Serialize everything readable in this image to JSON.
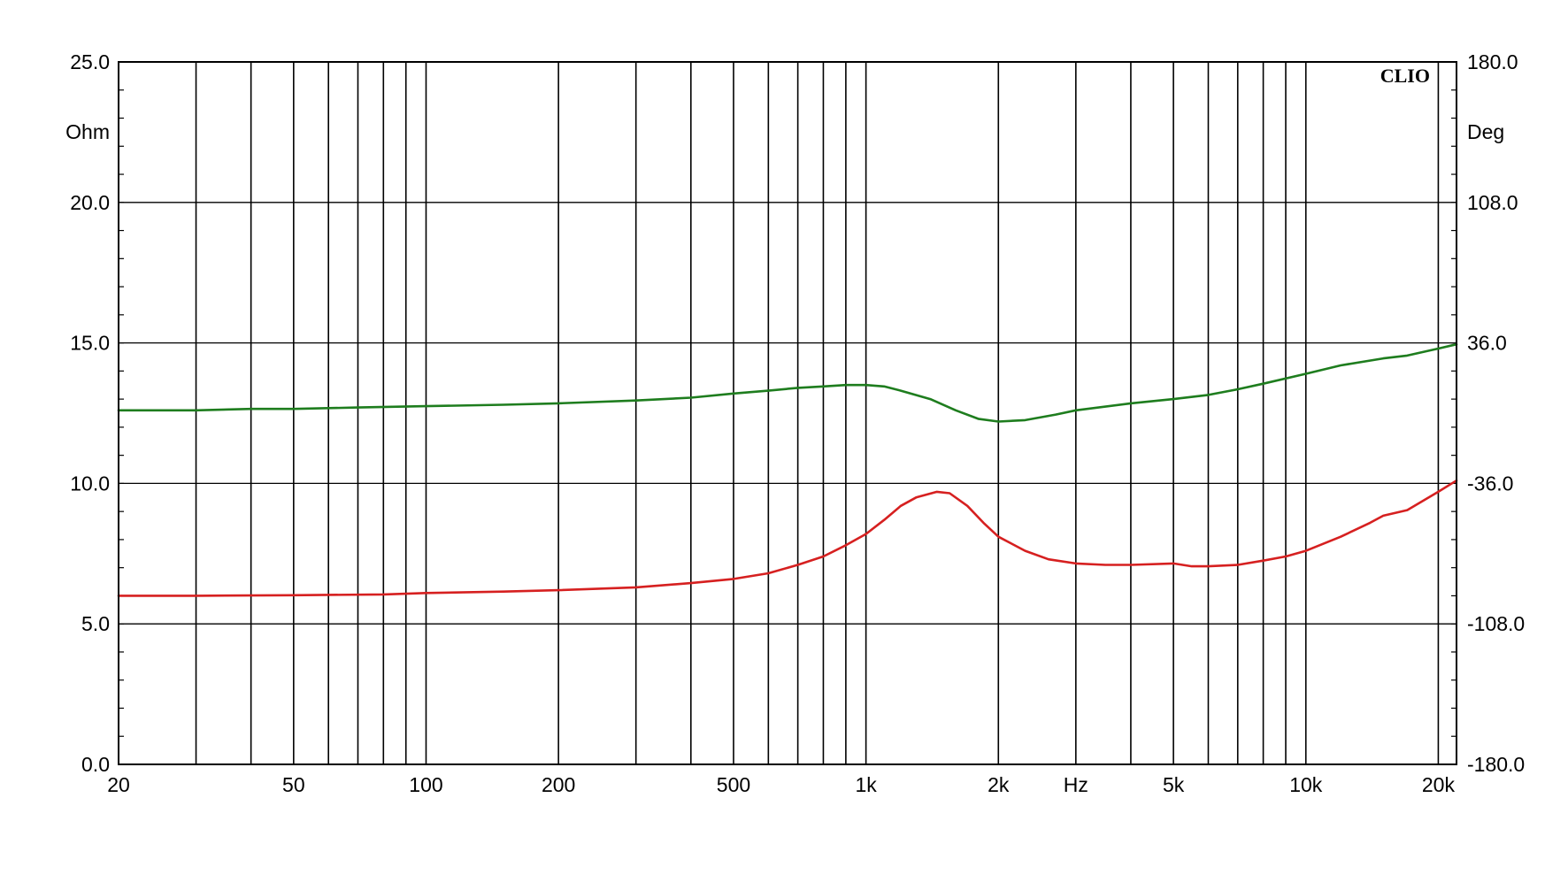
{
  "chart_data": {
    "type": "line",
    "brand": "CLIO",
    "x_scale": "log",
    "xlim": [
      20,
      22000
    ],
    "x_unit": "Hz",
    "x_ticks": [
      {
        "value": 20,
        "label": "20"
      },
      {
        "value": 50,
        "label": "50"
      },
      {
        "value": 100,
        "label": "100"
      },
      {
        "value": 200,
        "label": "200"
      },
      {
        "value": 500,
        "label": "500"
      },
      {
        "value": 1000,
        "label": "1k"
      },
      {
        "value": 2000,
        "label": "2k"
      },
      {
        "value": 5000,
        "label": "5k"
      },
      {
        "value": 10000,
        "label": "10k"
      },
      {
        "value": 20000,
        "label": "20k"
      }
    ],
    "y_left": {
      "unit": "Ohm",
      "ylim": [
        0,
        25
      ],
      "ticks": [
        "0.0",
        "5.0",
        "10.0",
        "15.0",
        "20.0",
        "25.0"
      ]
    },
    "y_right": {
      "unit": "Deg",
      "ylim": [
        -180,
        180
      ],
      "ticks": [
        "-180.0",
        "-108.0",
        "-36.0",
        "36.0",
        "108.0",
        "180.0"
      ]
    },
    "grid": true,
    "series": [
      {
        "axis": "left",
        "color": "#1e7d1e",
        "points": [
          [
            20,
            12.6
          ],
          [
            30,
            12.6
          ],
          [
            40,
            12.65
          ],
          [
            50,
            12.65
          ],
          [
            70,
            12.7
          ],
          [
            100,
            12.75
          ],
          [
            150,
            12.8
          ],
          [
            200,
            12.85
          ],
          [
            300,
            12.95
          ],
          [
            400,
            13.05
          ],
          [
            500,
            13.2
          ],
          [
            600,
            13.3
          ],
          [
            700,
            13.4
          ],
          [
            800,
            13.45
          ],
          [
            900,
            13.5
          ],
          [
            1000,
            13.5
          ],
          [
            1100,
            13.45
          ],
          [
            1200,
            13.3
          ],
          [
            1400,
            13.0
          ],
          [
            1600,
            12.6
          ],
          [
            1800,
            12.3
          ],
          [
            2000,
            12.2
          ],
          [
            2300,
            12.25
          ],
          [
            2700,
            12.45
          ],
          [
            3000,
            12.6
          ],
          [
            4000,
            12.85
          ],
          [
            5000,
            13.0
          ],
          [
            6000,
            13.15
          ],
          [
            7000,
            13.35
          ],
          [
            8000,
            13.55
          ],
          [
            10000,
            13.9
          ],
          [
            12000,
            14.2
          ],
          [
            15000,
            14.45
          ],
          [
            17000,
            14.55
          ],
          [
            20000,
            14.8
          ],
          [
            22000,
            14.95
          ]
        ]
      },
      {
        "axis": "left",
        "color": "#d62020",
        "points": [
          [
            20,
            6.0
          ],
          [
            30,
            6.0
          ],
          [
            50,
            6.02
          ],
          [
            80,
            6.05
          ],
          [
            100,
            6.1
          ],
          [
            150,
            6.15
          ],
          [
            200,
            6.2
          ],
          [
            300,
            6.3
          ],
          [
            400,
            6.45
          ],
          [
            500,
            6.6
          ],
          [
            600,
            6.8
          ],
          [
            700,
            7.1
          ],
          [
            800,
            7.4
          ],
          [
            900,
            7.8
          ],
          [
            1000,
            8.2
          ],
          [
            1100,
            8.7
          ],
          [
            1200,
            9.2
          ],
          [
            1300,
            9.5
          ],
          [
            1450,
            9.7
          ],
          [
            1550,
            9.65
          ],
          [
            1700,
            9.2
          ],
          [
            1850,
            8.6
          ],
          [
            2000,
            8.1
          ],
          [
            2300,
            7.6
          ],
          [
            2600,
            7.3
          ],
          [
            3000,
            7.15
          ],
          [
            3500,
            7.1
          ],
          [
            4000,
            7.1
          ],
          [
            5000,
            7.15
          ],
          [
            5500,
            7.05
          ],
          [
            6000,
            7.05
          ],
          [
            7000,
            7.1
          ],
          [
            8000,
            7.25
          ],
          [
            9000,
            7.4
          ],
          [
            10000,
            7.6
          ],
          [
            12000,
            8.1
          ],
          [
            14000,
            8.6
          ],
          [
            15000,
            8.85
          ],
          [
            17000,
            9.05
          ],
          [
            20000,
            9.7
          ],
          [
            22000,
            10.1
          ]
        ]
      }
    ]
  }
}
